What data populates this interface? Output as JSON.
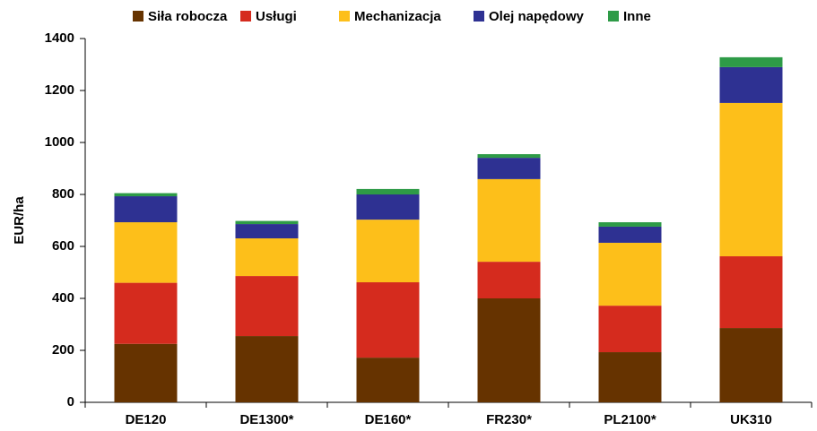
{
  "chart_data": {
    "type": "stacked_bar",
    "ylabel": "EUR/ha",
    "categories": [
      "DE120",
      "DE1300*",
      "DE160*",
      "FR230*",
      "PL2100*",
      "UK310"
    ],
    "series": [
      {
        "name": "Siła robocza",
        "color": "#663300",
        "values": [
          225,
          255,
          172,
          400,
          193,
          286
        ]
      },
      {
        "name": "Usługi",
        "color": "#d52b1e",
        "values": [
          235,
          231,
          290,
          141,
          179,
          276
        ]
      },
      {
        "name": "Mechanizacja",
        "color": "#fdbf1a",
        "values": [
          233,
          145,
          241,
          318,
          242,
          590
        ]
      },
      {
        "name": "Olej napędowy",
        "color": "#2e3192",
        "values": [
          100,
          55,
          97,
          82,
          62,
          138
        ]
      },
      {
        "name": "Inne",
        "color": "#2e9b47",
        "values": [
          12,
          12,
          21,
          14,
          17,
          38
        ]
      }
    ],
    "ylim": [
      0,
      1400
    ],
    "yticks": [
      0,
      200,
      400,
      600,
      800,
      1000,
      1200,
      1400
    ],
    "legend": "top"
  }
}
